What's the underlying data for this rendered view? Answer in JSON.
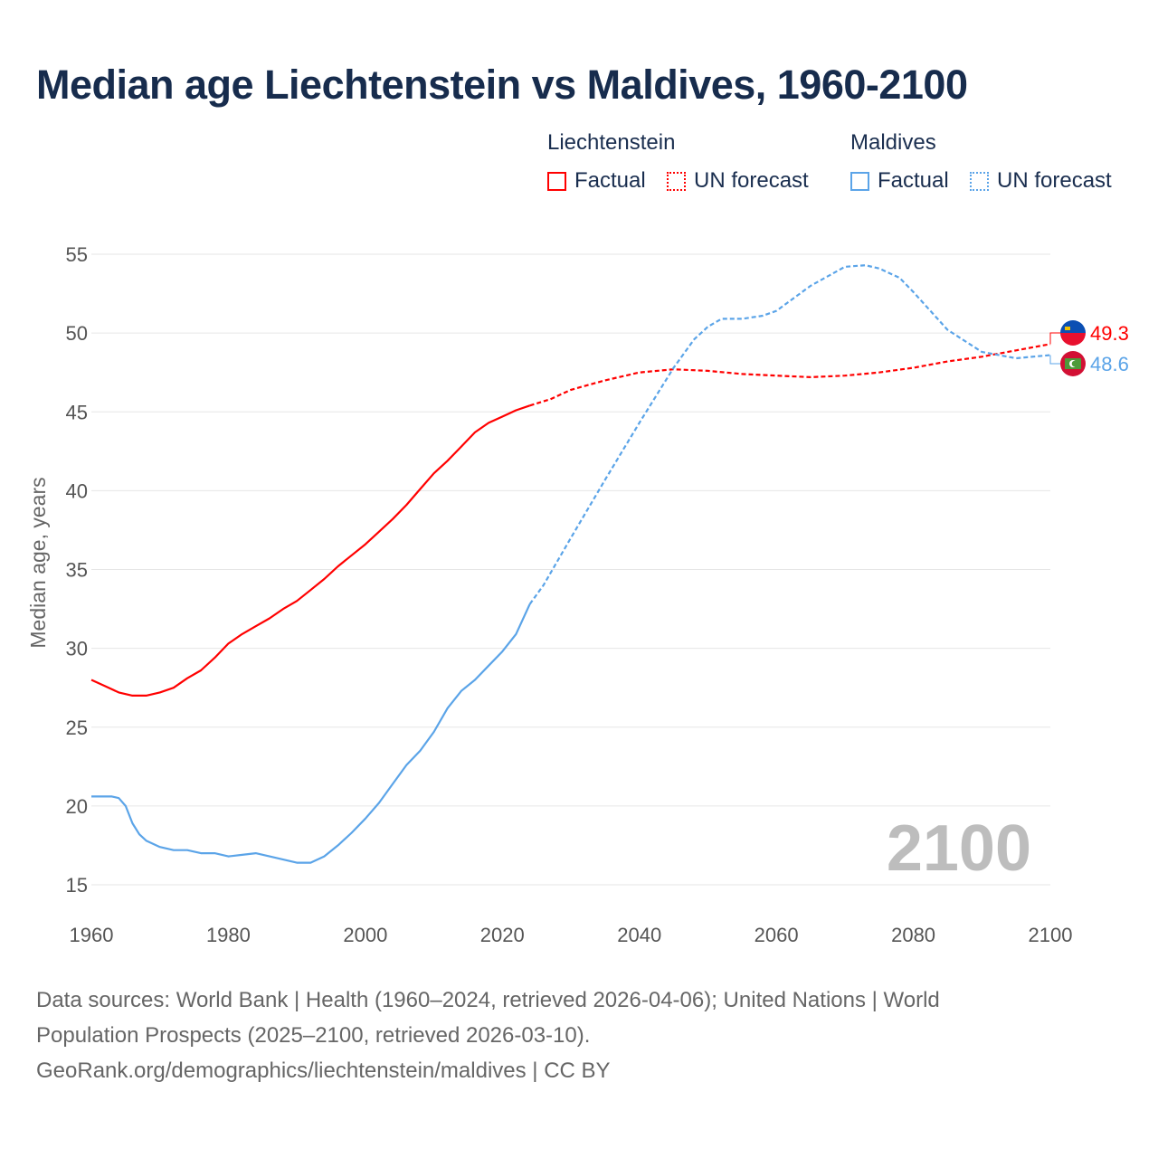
{
  "title": "Median age Liechtenstein vs Maldives, 1960-2100",
  "legend": {
    "groups": [
      {
        "name": "Liechtenstein",
        "factual": "Factual",
        "forecast": "UN forecast",
        "color": "#ff0000"
      },
      {
        "name": "Maldives",
        "factual": "Factual",
        "forecast": "UN forecast",
        "color": "#5ba4e8"
      }
    ]
  },
  "footer": {
    "line1": "Data sources: World Bank | Health (1960–2024, retrieved 2026-04-06); United Nations | World",
    "line2": "Population Prospects (2025–2100, retrieved 2026-03-10).",
    "line3": "GeoRank.org/demographics/liechtenstein/maldives | CC BY"
  },
  "chart_data": {
    "type": "line",
    "title": "Median age Liechtenstein vs Maldives, 1960-2100",
    "xlabel": "",
    "ylabel": "Median age, years",
    "xlim": [
      1960,
      2100
    ],
    "ylim": [
      15,
      55
    ],
    "xticks": [
      "1960",
      "1980",
      "2000",
      "2020",
      "2040",
      "2060",
      "2080",
      "2100"
    ],
    "yticks": [
      "15",
      "20",
      "25",
      "30",
      "35",
      "40",
      "45",
      "50",
      "55"
    ],
    "grid": true,
    "year_watermark": "2100",
    "series": [
      {
        "name": "Liechtenstein",
        "color": "#ff0000",
        "end_label": "49.3",
        "factual": {
          "x": [
            1960,
            1962,
            1964,
            1966,
            1968,
            1970,
            1972,
            1974,
            1976,
            1978,
            1980,
            1982,
            1984,
            1986,
            1988,
            1990,
            1992,
            1994,
            1996,
            1998,
            2000,
            2002,
            2004,
            2006,
            2008,
            2010,
            2012,
            2014,
            2016,
            2018,
            2020,
            2022,
            2024
          ],
          "y": [
            28.0,
            27.6,
            27.2,
            27.0,
            27.0,
            27.2,
            27.5,
            28.1,
            28.6,
            29.4,
            30.3,
            30.9,
            31.4,
            31.9,
            32.5,
            33.0,
            33.7,
            34.4,
            35.2,
            35.9,
            36.6,
            37.4,
            38.2,
            39.1,
            40.1,
            41.1,
            41.9,
            42.8,
            43.7,
            44.3,
            44.7,
            45.1,
            45.4
          ]
        },
        "forecast": {
          "x": [
            2024,
            2027,
            2030,
            2035,
            2040,
            2045,
            2050,
            2055,
            2060,
            2065,
            2070,
            2075,
            2080,
            2085,
            2090,
            2095,
            2100
          ],
          "y": [
            45.4,
            45.8,
            46.4,
            47.0,
            47.5,
            47.7,
            47.6,
            47.4,
            47.3,
            47.2,
            47.3,
            47.5,
            47.8,
            48.2,
            48.5,
            48.9,
            49.3
          ]
        }
      },
      {
        "name": "Maldives",
        "color": "#5ba4e8",
        "end_label": "48.6",
        "factual": {
          "x": [
            1960,
            1963,
            1964,
            1965,
            1966,
            1967,
            1968,
            1970,
            1972,
            1974,
            1976,
            1978,
            1980,
            1982,
            1984,
            1986,
            1988,
            1990,
            1992,
            1994,
            1996,
            1998,
            2000,
            2002,
            2004,
            2006,
            2008,
            2010,
            2012,
            2014,
            2016,
            2018,
            2020,
            2022,
            2024
          ],
          "y": [
            20.6,
            20.6,
            20.5,
            20.0,
            18.9,
            18.2,
            17.8,
            17.4,
            17.2,
            17.2,
            17.0,
            17.0,
            16.8,
            16.9,
            17.0,
            16.8,
            16.6,
            16.4,
            16.4,
            16.8,
            17.5,
            18.3,
            19.2,
            20.2,
            21.4,
            22.6,
            23.5,
            24.7,
            26.2,
            27.3,
            28.0,
            28.9,
            29.8,
            30.9,
            32.8
          ]
        },
        "forecast": {
          "x": [
            2024,
            2026,
            2030,
            2035,
            2040,
            2045,
            2048,
            2050,
            2052,
            2055,
            2058,
            2060,
            2065,
            2070,
            2073,
            2075,
            2078,
            2080,
            2085,
            2090,
            2095,
            2100
          ],
          "y": [
            32.8,
            34.0,
            37.0,
            40.7,
            44.3,
            47.8,
            49.6,
            50.4,
            50.9,
            50.9,
            51.1,
            51.4,
            53.0,
            54.2,
            54.3,
            54.1,
            53.5,
            52.6,
            50.2,
            48.8,
            48.4,
            48.6
          ]
        }
      }
    ]
  }
}
